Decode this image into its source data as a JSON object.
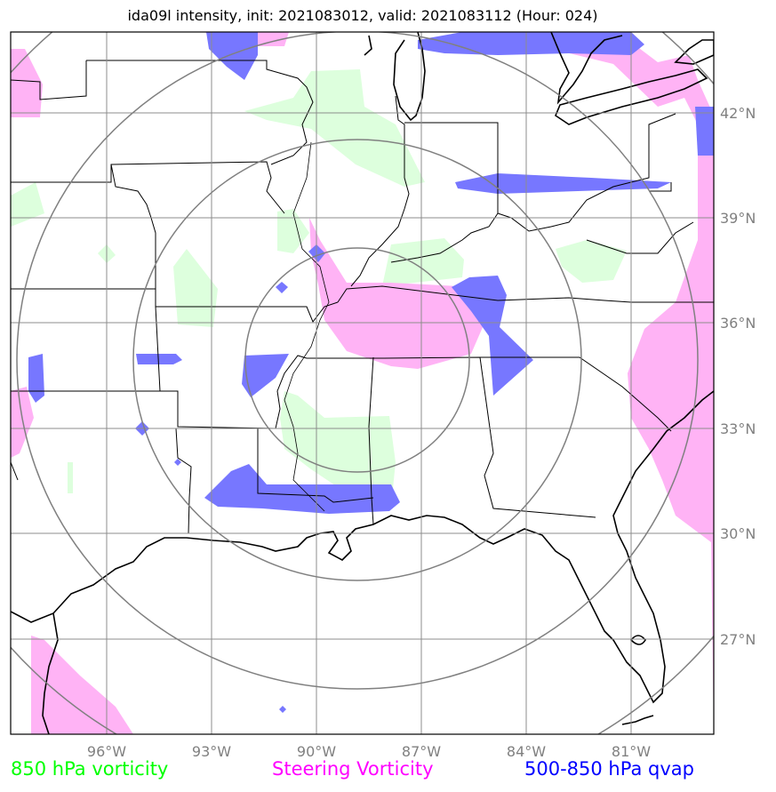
{
  "title": "ida09l intensity, init: 2021083012, valid: 2021083112 (Hour: 024)",
  "longitude_labels": [
    "96°W",
    "93°W",
    "90°W",
    "87°W",
    "84°W",
    "81°W"
  ],
  "latitude_labels": [
    "42°N",
    "39°N",
    "36°N",
    "33°N",
    "30°N",
    "27°N"
  ],
  "legend": [
    {
      "label": "850 hPa vorticity",
      "color": "#00ff00"
    },
    {
      "label": "Steering Vorticity",
      "color": "#ff00ff"
    },
    {
      "label": "500-850 hPa qvap",
      "color": "#0000ff"
    }
  ],
  "colors": {
    "green_fill": "#ddffdd",
    "magenta_fill": "#ffb3f5",
    "blue_fill": "#7777ff",
    "grid": "#8c8c8c",
    "rings": "#808080",
    "boundaries": "#000000"
  }
}
